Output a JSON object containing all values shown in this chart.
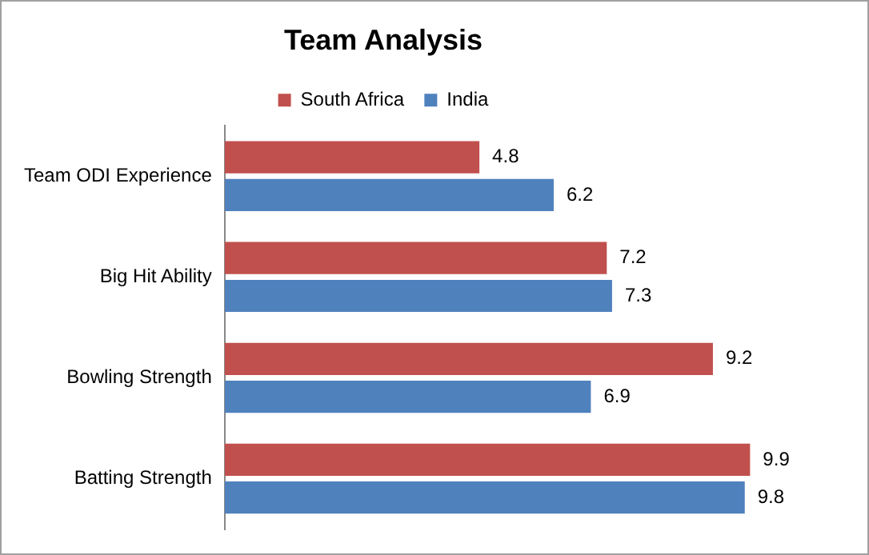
{
  "chart_data": {
    "type": "bar",
    "orientation": "horizontal",
    "title": "Team Analysis",
    "categories": [
      "Team ODI Experience",
      "Big Hit Ability",
      "Bowling Strength",
      "Batting Strength"
    ],
    "series": [
      {
        "name": "South Africa",
        "color": "#c0504d",
        "values": [
          4.8,
          7.2,
          9.2,
          9.9
        ]
      },
      {
        "name": "India",
        "color": "#4f81bd",
        "values": [
          6.2,
          7.3,
          6.9,
          9.8
        ]
      }
    ],
    "tick_labels": "y",
    "grid": false,
    "legend": "top",
    "data_labels": true
  }
}
